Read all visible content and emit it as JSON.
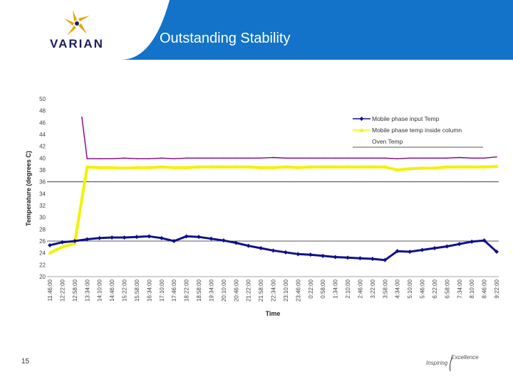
{
  "slide": {
    "title": "Outstanding Stability",
    "logo_text": "VARIAN",
    "number": "15",
    "tagline_part1": "Inspiring",
    "tagline_part2": "Excellence"
  },
  "colors": {
    "header_blue": "#1273c8",
    "logo_gold": "#e8a400",
    "logo_navy": "#1d1d5c",
    "series_navy": "#10108c",
    "series_yellow": "#f2f200",
    "series_purple": "#800080"
  },
  "chart_data": {
    "type": "line",
    "title": "",
    "xlabel": "Time",
    "ylabel": "Temperature (degrees C)",
    "ylim": [
      20,
      50
    ],
    "yticks": [
      20,
      22,
      24,
      26,
      28,
      30,
      32,
      34,
      36,
      38,
      40,
      42,
      44,
      46,
      48,
      50
    ],
    "grid": "horizontal-major-lines",
    "legend": "top-right",
    "categories": [
      "11:46:00",
      "12:22:00",
      "12:58:00",
      "13:34:00",
      "14:10:00",
      "14:46:00",
      "15:22:00",
      "15:58:00",
      "16:34:00",
      "17:10:00",
      "17:46:00",
      "18:22:00",
      "18:58:00",
      "19:34:00",
      "20:10:00",
      "20:46:00",
      "21:22:00",
      "21:58:00",
      "22:34:00",
      "23:10:00",
      "23:46:00",
      "0:22:00",
      "0:58:00",
      "1:34:00",
      "2:10:00",
      "2:46:00",
      "3:22:00",
      "3:58:00",
      "4:34:00",
      "5:10:00",
      "5:46:00",
      "6:22:00",
      "6:58:00",
      "7:34:00",
      "8:10:00",
      "8:46:00",
      "9:22:00"
    ],
    "series": [
      {
        "name": "Mobile phase input Temp",
        "color": "#10108c",
        "marker": "diamond",
        "values": [
          25.3,
          25.8,
          26.0,
          26.3,
          26.5,
          26.6,
          26.6,
          26.7,
          26.8,
          26.5,
          26.0,
          26.8,
          26.7,
          26.4,
          26.1,
          25.7,
          25.2,
          24.8,
          24.4,
          24.1,
          23.8,
          23.7,
          23.5,
          23.3,
          23.2,
          23.1,
          23.0,
          22.8,
          24.3,
          24.2,
          24.5,
          24.8,
          25.1,
          25.5,
          25.9,
          26.1,
          24.2
        ]
      },
      {
        "name": "Mobile phase temp inside column",
        "color": "#f2f200",
        "marker": "triangle",
        "values": [
          24.0,
          25.0,
          25.6,
          38.5,
          38.4,
          38.4,
          38.3,
          38.4,
          38.4,
          38.5,
          38.4,
          38.4,
          38.5,
          38.5,
          38.5,
          38.5,
          38.5,
          38.4,
          38.4,
          38.5,
          38.4,
          38.5,
          38.5,
          38.5,
          38.5,
          38.5,
          38.5,
          38.5,
          38.0,
          38.2,
          38.3,
          38.3,
          38.5,
          38.5,
          38.5,
          38.5,
          38.6
        ]
      },
      {
        "name": "Oven Temp",
        "color": "#800080",
        "marker": "none",
        "values": [
          null,
          null,
          null,
          39.9,
          39.9,
          39.9,
          40.0,
          39.9,
          39.9,
          40.0,
          39.9,
          40.0,
          40.0,
          40.0,
          40.0,
          40.0,
          40.0,
          40.0,
          40.1,
          40.0,
          40.0,
          40.0,
          40.0,
          40.0,
          40.0,
          40.0,
          40.0,
          40.0,
          39.9,
          40.0,
          40.0,
          40.0,
          40.0,
          40.1,
          40.0,
          40.0,
          40.2
        ]
      }
    ]
  }
}
